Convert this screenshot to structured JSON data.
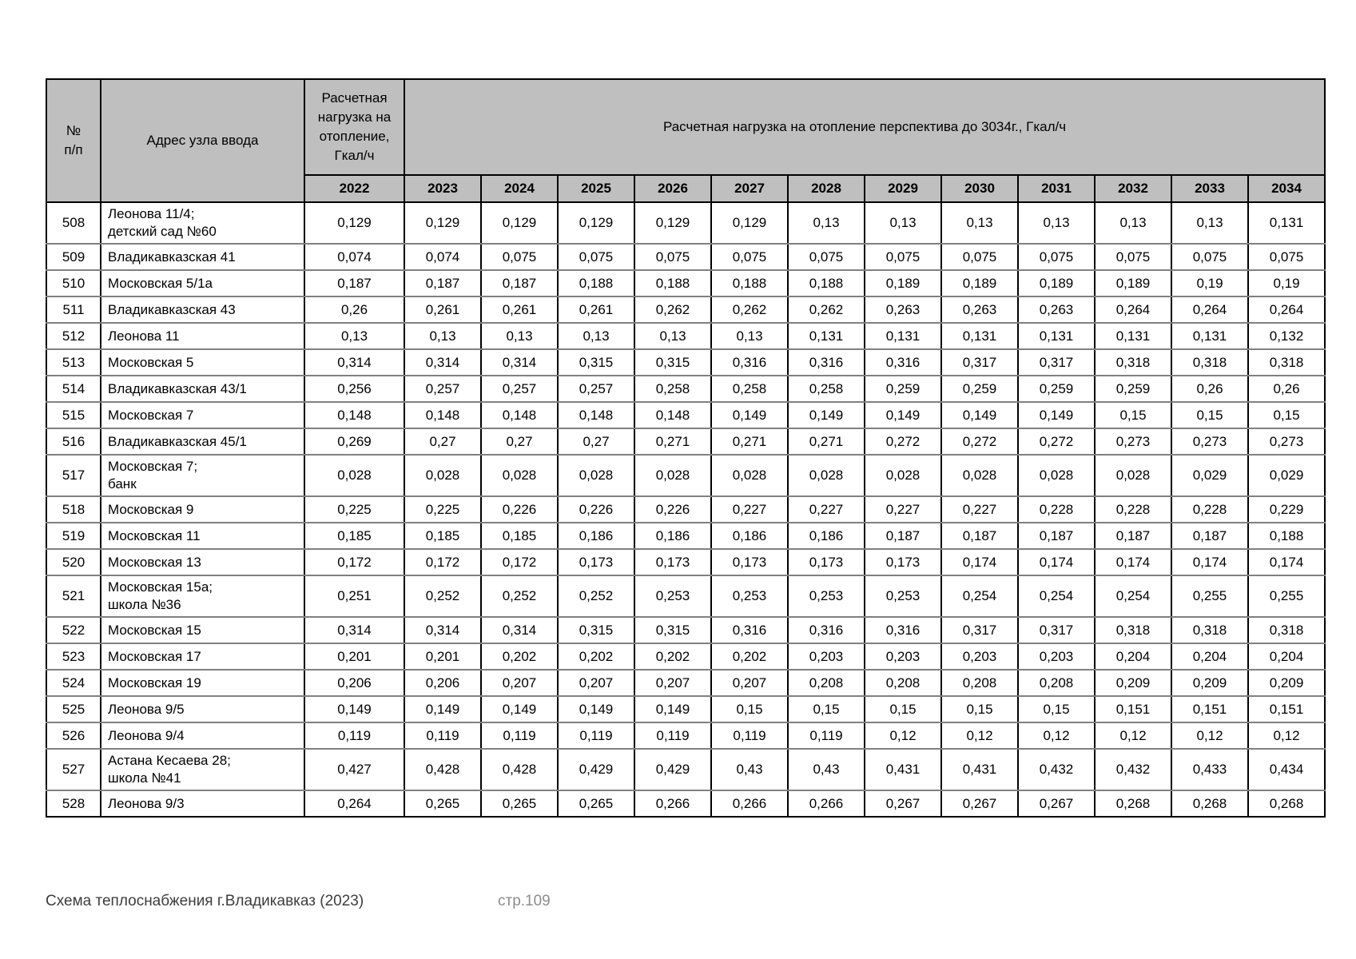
{
  "page": {
    "footer_left": "Схема теплоснабжения г.Владикавказ (2023)",
    "footer_page": "стр.109"
  },
  "colors": {
    "header_bg": "#bfbfbf",
    "table_border": "#000000",
    "row_divider": "#808080",
    "page_number_text": "#8c8c8c"
  },
  "table": {
    "header": {
      "col_num": "№\nп/п",
      "col_address": "Адрес узла ввода",
      "col_2022": "Расчетная нагрузка на отопление, Гкал/ч",
      "col_forecast": "Расчетная нагрузка на отопление перспектива до 3034г., Гкал/ч",
      "years": [
        "2022",
        "2023",
        "2024",
        "2025",
        "2026",
        "2027",
        "2028",
        "2029",
        "2030",
        "2031",
        "2032",
        "2033",
        "2034"
      ]
    },
    "rows": [
      {
        "num": "508",
        "address": "Леонова 11/4;\nдетский сад №60",
        "values": [
          "0,129",
          "0,129",
          "0,129",
          "0,129",
          "0,129",
          "0,129",
          "0,13",
          "0,13",
          "0,13",
          "0,13",
          "0,13",
          "0,13",
          "0,131"
        ]
      },
      {
        "num": "509",
        "address": "Владикавказская 41",
        "values": [
          "0,074",
          "0,074",
          "0,075",
          "0,075",
          "0,075",
          "0,075",
          "0,075",
          "0,075",
          "0,075",
          "0,075",
          "0,075",
          "0,075",
          "0,075"
        ]
      },
      {
        "num": "510",
        "address": "Московская 5/1а",
        "values": [
          "0,187",
          "0,187",
          "0,187",
          "0,188",
          "0,188",
          "0,188",
          "0,188",
          "0,189",
          "0,189",
          "0,189",
          "0,189",
          "0,19",
          "0,19"
        ]
      },
      {
        "num": "511",
        "address": "Владикавказская 43",
        "values": [
          "0,26",
          "0,261",
          "0,261",
          "0,261",
          "0,262",
          "0,262",
          "0,262",
          "0,263",
          "0,263",
          "0,263",
          "0,264",
          "0,264",
          "0,264"
        ]
      },
      {
        "num": "512",
        "address": "Леонова 11",
        "values": [
          "0,13",
          "0,13",
          "0,13",
          "0,13",
          "0,13",
          "0,13",
          "0,131",
          "0,131",
          "0,131",
          "0,131",
          "0,131",
          "0,131",
          "0,132"
        ]
      },
      {
        "num": "513",
        "address": "Московская 5",
        "values": [
          "0,314",
          "0,314",
          "0,314",
          "0,315",
          "0,315",
          "0,316",
          "0,316",
          "0,316",
          "0,317",
          "0,317",
          "0,318",
          "0,318",
          "0,318"
        ]
      },
      {
        "num": "514",
        "address": "Владикавказская 43/1",
        "values": [
          "0,256",
          "0,257",
          "0,257",
          "0,257",
          "0,258",
          "0,258",
          "0,258",
          "0,259",
          "0,259",
          "0,259",
          "0,259",
          "0,26",
          "0,26"
        ]
      },
      {
        "num": "515",
        "address": "Московская 7",
        "values": [
          "0,148",
          "0,148",
          "0,148",
          "0,148",
          "0,148",
          "0,149",
          "0,149",
          "0,149",
          "0,149",
          "0,149",
          "0,15",
          "0,15",
          "0,15"
        ]
      },
      {
        "num": "516",
        "address": "Владикавказская 45/1",
        "values": [
          "0,269",
          "0,27",
          "0,27",
          "0,27",
          "0,271",
          "0,271",
          "0,271",
          "0,272",
          "0,272",
          "0,272",
          "0,273",
          "0,273",
          "0,273"
        ]
      },
      {
        "num": "517",
        "address": "Московская 7;\nбанк",
        "values": [
          "0,028",
          "0,028",
          "0,028",
          "0,028",
          "0,028",
          "0,028",
          "0,028",
          "0,028",
          "0,028",
          "0,028",
          "0,028",
          "0,029",
          "0,029"
        ]
      },
      {
        "num": "518",
        "address": "Московская 9",
        "values": [
          "0,225",
          "0,225",
          "0,226",
          "0,226",
          "0,226",
          "0,227",
          "0,227",
          "0,227",
          "0,227",
          "0,228",
          "0,228",
          "0,228",
          "0,229"
        ]
      },
      {
        "num": "519",
        "address": "Московская 11",
        "values": [
          "0,185",
          "0,185",
          "0,185",
          "0,186",
          "0,186",
          "0,186",
          "0,186",
          "0,187",
          "0,187",
          "0,187",
          "0,187",
          "0,187",
          "0,188"
        ]
      },
      {
        "num": "520",
        "address": "Московская 13",
        "values": [
          "0,172",
          "0,172",
          "0,172",
          "0,173",
          "0,173",
          "0,173",
          "0,173",
          "0,173",
          "0,174",
          "0,174",
          "0,174",
          "0,174",
          "0,174"
        ]
      },
      {
        "num": "521",
        "address": "Московская 15а;\nшкола №36",
        "values": [
          "0,251",
          "0,252",
          "0,252",
          "0,252",
          "0,253",
          "0,253",
          "0,253",
          "0,253",
          "0,254",
          "0,254",
          "0,254",
          "0,255",
          "0,255"
        ]
      },
      {
        "num": "522",
        "address": "Московская 15",
        "values": [
          "0,314",
          "0,314",
          "0,314",
          "0,315",
          "0,315",
          "0,316",
          "0,316",
          "0,316",
          "0,317",
          "0,317",
          "0,318",
          "0,318",
          "0,318"
        ]
      },
      {
        "num": "523",
        "address": "Московская 17",
        "values": [
          "0,201",
          "0,201",
          "0,202",
          "0,202",
          "0,202",
          "0,202",
          "0,203",
          "0,203",
          "0,203",
          "0,203",
          "0,204",
          "0,204",
          "0,204"
        ]
      },
      {
        "num": "524",
        "address": "Московская 19",
        "values": [
          "0,206",
          "0,206",
          "0,207",
          "0,207",
          "0,207",
          "0,207",
          "0,208",
          "0,208",
          "0,208",
          "0,208",
          "0,209",
          "0,209",
          "0,209"
        ]
      },
      {
        "num": "525",
        "address": "Леонова 9/5",
        "values": [
          "0,149",
          "0,149",
          "0,149",
          "0,149",
          "0,149",
          "0,15",
          "0,15",
          "0,15",
          "0,15",
          "0,15",
          "0,151",
          "0,151",
          "0,151"
        ]
      },
      {
        "num": "526",
        "address": "Леонова 9/4",
        "values": [
          "0,119",
          "0,119",
          "0,119",
          "0,119",
          "0,119",
          "0,119",
          "0,119",
          "0,12",
          "0,12",
          "0,12",
          "0,12",
          "0,12",
          "0,12"
        ]
      },
      {
        "num": "527",
        "address": "Астана Кесаева 28;\nшкола №41",
        "values": [
          "0,427",
          "0,428",
          "0,428",
          "0,429",
          "0,429",
          "0,43",
          "0,43",
          "0,431",
          "0,431",
          "0,432",
          "0,432",
          "0,433",
          "0,434"
        ]
      },
      {
        "num": "528",
        "address": "Леонова 9/3",
        "values": [
          "0,264",
          "0,265",
          "0,265",
          "0,265",
          "0,266",
          "0,266",
          "0,266",
          "0,267",
          "0,267",
          "0,267",
          "0,268",
          "0,268",
          "0,268"
        ]
      }
    ]
  }
}
